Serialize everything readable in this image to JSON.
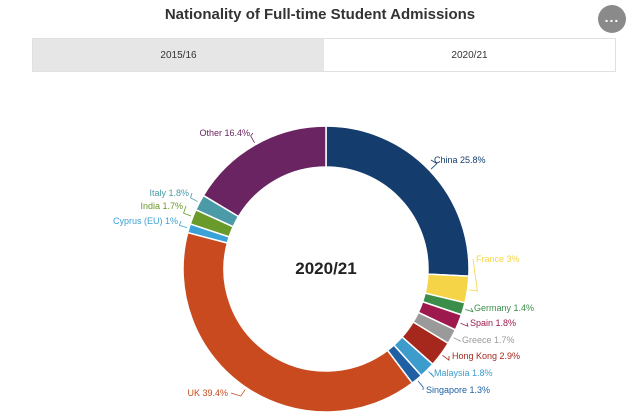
{
  "title": "Nationality of Full-time Student Admissions",
  "tabs": [
    {
      "label": "2015/16",
      "active": false
    },
    {
      "label": "2020/21",
      "active": true
    }
  ],
  "more_icon": "ellipsis-icon",
  "chart_data": {
    "type": "pie",
    "donut": true,
    "center_label": "2020/21",
    "slices": [
      {
        "label": "China 25.8%",
        "value": 25.8,
        "color": "#143d6e"
      },
      {
        "label": "France 3%",
        "value": 3.0,
        "color": "#f5d547"
      },
      {
        "label": "Germany 1.4%",
        "value": 1.4,
        "color": "#3a8e4a"
      },
      {
        "label": "Spain 1.8%",
        "value": 1.8,
        "color": "#9e1a4e"
      },
      {
        "label": "Greece 1.7%",
        "value": 1.7,
        "color": "#9a9a9a"
      },
      {
        "label": "Hong Kong 2.9%",
        "value": 2.9,
        "color": "#a6281c"
      },
      {
        "label": "Malaysia 1.8%",
        "value": 1.8,
        "color": "#3c9ccc"
      },
      {
        "label": "Singapore 1.3%",
        "value": 1.3,
        "color": "#1f5fa3"
      },
      {
        "label": "UK 39.4%",
        "value": 39.4,
        "color": "#c84a1e"
      },
      {
        "label": "Cyprus (EU) 1%",
        "value": 1.0,
        "color": "#3aa2d6"
      },
      {
        "label": "India 1.7%",
        "value": 1.7,
        "color": "#6a9a2a"
      },
      {
        "label": "Italy 1.8%",
        "value": 1.8,
        "color": "#4a9aa8"
      },
      {
        "label": "Other 16.4%",
        "value": 16.4,
        "color": "#6b2462"
      }
    ]
  }
}
